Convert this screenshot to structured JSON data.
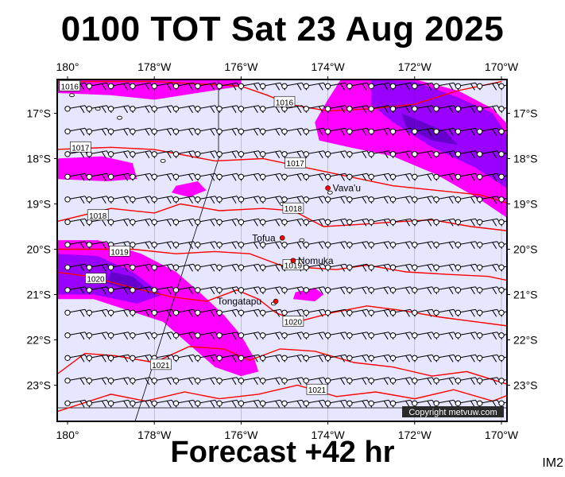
{
  "header": {
    "title": "0100 TOT Sat 23 Aug 2025"
  },
  "footer": {
    "forecast": "Forecast +42 hr",
    "code": "IM2"
  },
  "credit": "Copyright metvuw.com",
  "axes": {
    "lon_labels": [
      "180°",
      "178°W",
      "176°W",
      "174°W",
      "172°W",
      "170°W"
    ],
    "lat_labels": [
      "17°S",
      "18°S",
      "19°S",
      "20°S",
      "21°S",
      "22°S",
      "23°S"
    ]
  },
  "places": [
    {
      "name": "Vava'u",
      "lon": -174.0,
      "lat": -18.65
    },
    {
      "name": "Tofua",
      "lon": -175.05,
      "lat": -19.75
    },
    {
      "name": "Nomuka",
      "lon": -174.8,
      "lat": -20.25
    },
    {
      "name": "Tongatapu",
      "lon": -175.2,
      "lat": -21.15
    }
  ],
  "isobars": [
    {
      "label": "1016",
      "lon": -179.95,
      "lat": -16.4,
      "pts": [
        [
          -180.3,
          -16.3
        ],
        [
          -178,
          -16.3
        ],
        [
          -176,
          -16.4
        ],
        [
          -175.4,
          -16.6
        ],
        [
          -174.9,
          -16.8
        ],
        [
          -174,
          -16.95
        ],
        [
          -173,
          -16.9
        ],
        [
          -172,
          -16.8
        ],
        [
          -171,
          -16.5
        ],
        [
          -170,
          -16.3
        ]
      ]
    },
    {
      "label": "1016",
      "lon": -175.0,
      "lat": -16.75,
      "pts": []
    },
    {
      "label": "1017",
      "lon": -179.7,
      "lat": -17.75,
      "pts": [
        [
          -180.3,
          -17.8
        ],
        [
          -179,
          -17.75
        ],
        [
          -178,
          -17.8
        ],
        [
          -176.6,
          -18.05
        ],
        [
          -175.5,
          -18.0
        ],
        [
          -174.5,
          -18.2
        ],
        [
          -173.5,
          -18.4
        ],
        [
          -172.5,
          -18.6
        ],
        [
          -171.5,
          -18.7
        ],
        [
          -170.5,
          -18.8
        ],
        [
          -169.8,
          -19.0
        ]
      ]
    },
    {
      "label": "1017",
      "lon": -174.75,
      "lat": -18.1,
      "pts": []
    },
    {
      "label": "1018",
      "lon": -179.3,
      "lat": -19.25,
      "pts": [
        [
          -180.3,
          -19.4
        ],
        [
          -179,
          -19.1
        ],
        [
          -178,
          -19.2
        ],
        [
          -177.4,
          -19.0
        ],
        [
          -176.5,
          -19.15
        ],
        [
          -175.5,
          -19.1
        ],
        [
          -174.8,
          -19.15
        ],
        [
          -174.1,
          -19.5
        ],
        [
          -173.2,
          -19.45
        ],
        [
          -172.5,
          -19.4
        ],
        [
          -171.6,
          -19.35
        ],
        [
          -170.7,
          -19.5
        ],
        [
          -169.8,
          -19.6
        ]
      ]
    },
    {
      "label": "1018",
      "lon": -174.8,
      "lat": -19.1,
      "pts": []
    },
    {
      "label": "1019",
      "lon": -178.8,
      "lat": -20.05,
      "pts": [
        [
          -180.3,
          -20.0
        ],
        [
          -179.5,
          -20.0
        ],
        [
          -178.5,
          -20.0
        ],
        [
          -177.5,
          -20.1
        ],
        [
          -176.6,
          -20.05
        ],
        [
          -175.8,
          -20.1
        ],
        [
          -175.1,
          -20.35
        ],
        [
          -174.6,
          -20.4
        ],
        [
          -173.8,
          -20.45
        ],
        [
          -173.1,
          -20.35
        ],
        [
          -172.2,
          -20.5
        ],
        [
          -171.3,
          -20.55
        ],
        [
          -170.3,
          -20.6
        ],
        [
          -169.8,
          -20.7
        ]
      ]
    },
    {
      "label": "1019",
      "lon": -174.8,
      "lat": -20.35,
      "pts": []
    },
    {
      "label": "1020",
      "lon": -179.35,
      "lat": -20.65,
      "pts": [
        [
          -180.3,
          -20.5
        ],
        [
          -179.5,
          -20.6
        ],
        [
          -178.5,
          -20.85
        ],
        [
          -177.6,
          -21.05
        ],
        [
          -176.8,
          -21.15
        ],
        [
          -176.1,
          -20.9
        ],
        [
          -175.6,
          -21.1
        ],
        [
          -175.2,
          -21.4
        ],
        [
          -174.7,
          -21.6
        ],
        [
          -173.9,
          -21.4
        ],
        [
          -173.1,
          -21.25
        ],
        [
          -172.3,
          -21.35
        ],
        [
          -171.4,
          -21.5
        ],
        [
          -170.6,
          -21.6
        ],
        [
          -169.8,
          -21.7
        ]
      ]
    },
    {
      "label": "1020",
      "lon": -174.8,
      "lat": -21.6,
      "pts": []
    },
    {
      "label": "1021",
      "lon": -177.85,
      "lat": -22.55,
      "pts": [
        [
          -180.3,
          -22.8
        ],
        [
          -179.6,
          -22.3
        ],
        [
          -178.9,
          -22.35
        ],
        [
          -178.0,
          -22.5
        ],
        [
          -177.2,
          -22.15
        ],
        [
          -176.4,
          -22.2
        ],
        [
          -175.8,
          -22.45
        ],
        [
          -175.1,
          -22.2
        ],
        [
          -174.3,
          -22.25
        ],
        [
          -173.4,
          -22.5
        ],
        [
          -172.5,
          -22.6
        ],
        [
          -171.6,
          -22.8
        ],
        [
          -170.8,
          -22.7
        ],
        [
          -169.8,
          -23.0
        ]
      ]
    },
    {
      "label": "1021",
      "lon": -174.25,
      "lat": -23.1,
      "pts": [
        [
          -180.3,
          -23.6
        ],
        [
          -179.0,
          -23.2
        ],
        [
          -178.2,
          -23.35
        ],
        [
          -177.3,
          -23.15
        ],
        [
          -176.5,
          -23.3
        ],
        [
          -175.6,
          -23.2
        ],
        [
          -174.7,
          -23.0
        ],
        [
          -173.8,
          -23.25
        ],
        [
          -172.9,
          -23.15
        ],
        [
          -172.0,
          -23.3
        ],
        [
          -171.1,
          -23.1
        ],
        [
          -170.2,
          -23.35
        ],
        [
          -169.8,
          -23.2
        ]
      ]
    }
  ],
  "rain": [
    {
      "color": "#ff00ff",
      "level": 1,
      "pts": [
        [
          -180.3,
          -16.55
        ],
        [
          -179,
          -16.6
        ],
        [
          -178,
          -16.7
        ],
        [
          -177,
          -16.55
        ],
        [
          -176,
          -16.4
        ],
        [
          -176,
          -16.2
        ],
        [
          -180.3,
          -16.2
        ]
      ]
    },
    {
      "color": "#ff00ff",
      "level": 1,
      "pts": [
        [
          -173.7,
          -16.25
        ],
        [
          -172,
          -16.25
        ],
        [
          -171,
          -16.5
        ],
        [
          -170.2,
          -16.9
        ],
        [
          -169.8,
          -17.3
        ],
        [
          -169.8,
          -19.35
        ],
        [
          -170.5,
          -18.9
        ],
        [
          -171.5,
          -18.35
        ],
        [
          -172.5,
          -17.95
        ],
        [
          -173.5,
          -17.75
        ],
        [
          -174.2,
          -17.6
        ],
        [
          -174.3,
          -17.2
        ],
        [
          -174.0,
          -16.7
        ]
      ]
    },
    {
      "color": "#ff00ff",
      "level": 1,
      "pts": [
        [
          -180.3,
          -18.0
        ],
        [
          -179.2,
          -17.95
        ],
        [
          -178.5,
          -18.1
        ],
        [
          -178.4,
          -18.45
        ],
        [
          -179.1,
          -18.5
        ],
        [
          -180.3,
          -18.45
        ]
      ]
    },
    {
      "color": "#ff00ff",
      "level": 1,
      "pts": [
        [
          -177.5,
          -18.6
        ],
        [
          -177.0,
          -18.5
        ],
        [
          -176.8,
          -18.7
        ],
        [
          -177.2,
          -18.85
        ],
        [
          -177.6,
          -18.75
        ]
      ]
    },
    {
      "color": "#ff00ff",
      "level": 1,
      "pts": [
        [
          -180.3,
          -19.8
        ],
        [
          -179.3,
          -19.8
        ],
        [
          -178.3,
          -20.1
        ],
        [
          -177.5,
          -20.5
        ],
        [
          -176.9,
          -21.0
        ],
        [
          -176.4,
          -21.45
        ],
        [
          -176.0,
          -21.9
        ],
        [
          -175.7,
          -22.4
        ],
        [
          -175.6,
          -22.7
        ],
        [
          -176.0,
          -22.8
        ],
        [
          -176.6,
          -22.6
        ],
        [
          -177.2,
          -22.1
        ],
        [
          -177.8,
          -21.6
        ],
        [
          -178.6,
          -21.35
        ],
        [
          -179.4,
          -21.1
        ],
        [
          -180.3,
          -21.1
        ]
      ]
    },
    {
      "color": "#ff00ff",
      "level": 1,
      "pts": [
        [
          -174.75,
          -20.95
        ],
        [
          -174.3,
          -20.85
        ],
        [
          -174.1,
          -21.0
        ],
        [
          -174.3,
          -21.15
        ],
        [
          -174.8,
          -21.1
        ]
      ]
    },
    {
      "color": "#9900ff",
      "level": 2,
      "pts": [
        [
          -173.0,
          -16.25
        ],
        [
          -172,
          -16.3
        ],
        [
          -171,
          -16.65
        ],
        [
          -170.2,
          -17.0
        ],
        [
          -169.8,
          -17.6
        ],
        [
          -169.8,
          -18.7
        ],
        [
          -170.6,
          -18.2
        ],
        [
          -171.6,
          -17.75
        ],
        [
          -172.5,
          -17.2
        ],
        [
          -173.0,
          -16.8
        ]
      ]
    },
    {
      "color": "#9900ff",
      "level": 2,
      "pts": [
        [
          -180.3,
          -20.1
        ],
        [
          -179.3,
          -20.15
        ],
        [
          -178.5,
          -20.5
        ],
        [
          -177.8,
          -21.0
        ],
        [
          -178.4,
          -21.2
        ],
        [
          -179.4,
          -21.0
        ],
        [
          -180.3,
          -21.0
        ]
      ]
    },
    {
      "color": "#6600cc",
      "level": 3,
      "pts": [
        [
          -172.3,
          -17.0
        ],
        [
          -171.3,
          -17.4
        ],
        [
          -171.0,
          -17.7
        ],
        [
          -171.6,
          -17.6
        ],
        [
          -172.2,
          -17.3
        ]
      ]
    },
    {
      "color": "#6600cc",
      "level": 3,
      "pts": [
        [
          -179.0,
          -20.5
        ],
        [
          -178.5,
          -20.6
        ],
        [
          -178.2,
          -20.85
        ],
        [
          -178.6,
          -20.9
        ],
        [
          -179.1,
          -20.75
        ]
      ]
    }
  ],
  "style": {
    "background": "#e6e6ff",
    "isobar_color": "#ff0000",
    "wind_color": "#000000"
  }
}
